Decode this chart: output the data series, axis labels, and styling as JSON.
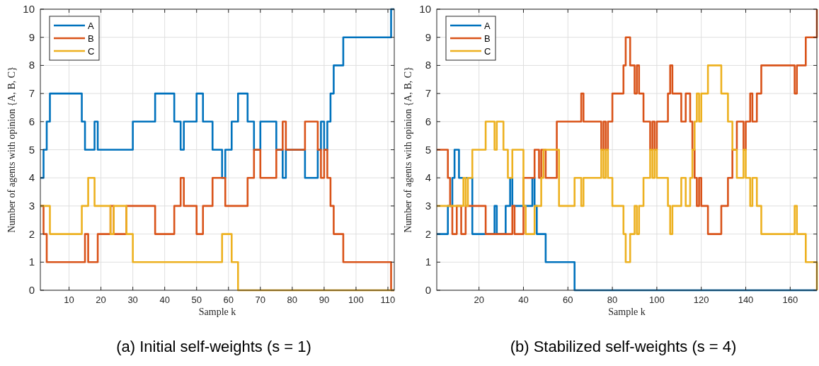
{
  "chart_data": [
    {
      "type": "step",
      "xlabel": "Sample k",
      "ylabel": "Number of agents with opinion {A, B, C}",
      "subtitle": "(a) Initial self-weights (s = 1)",
      "xlim": [
        1,
        112
      ],
      "ylim": [
        0,
        10
      ],
      "xticks": [
        10,
        20,
        30,
        40,
        50,
        60,
        70,
        80,
        90,
        100,
        110
      ],
      "yticks": [
        0,
        1,
        2,
        3,
        4,
        5,
        6,
        7,
        8,
        9,
        10
      ],
      "grid": true,
      "legend": "top left",
      "line_style": "solid",
      "marker": "none",
      "series": [
        {
          "name": "A",
          "color": "#0072bd",
          "x": [
            1,
            2,
            3,
            4,
            14,
            15,
            18,
            19,
            30,
            37,
            43,
            45,
            46,
            50,
            52,
            55,
            58,
            59,
            61,
            63,
            66,
            68,
            70,
            75,
            77,
            78,
            84,
            88,
            89,
            90,
            91,
            92,
            93,
            96,
            111,
            112
          ],
          "values": [
            4,
            5,
            6,
            7,
            6,
            5,
            6,
            5,
            6,
            7,
            6,
            5,
            6,
            7,
            6,
            5,
            4,
            5,
            6,
            7,
            6,
            5,
            6,
            5,
            4,
            5,
            4,
            5,
            6,
            5,
            6,
            7,
            8,
            9,
            10,
            10
          ]
        },
        {
          "name": "B",
          "color": "#d95319",
          "x": [
            1,
            2,
            3,
            15,
            16,
            19,
            23,
            24,
            28,
            37,
            43,
            45,
            46,
            50,
            52,
            55,
            59,
            66,
            68,
            70,
            75,
            77,
            78,
            84,
            88,
            89,
            90,
            91,
            92,
            93,
            96,
            111,
            112
          ],
          "values": [
            3,
            2,
            1,
            2,
            1,
            2,
            3,
            2,
            3,
            2,
            3,
            4,
            3,
            2,
            3,
            4,
            3,
            4,
            5,
            4,
            5,
            6,
            5,
            6,
            5,
            4,
            5,
            4,
            3,
            2,
            1,
            0,
            0
          ]
        },
        {
          "name": "C",
          "color": "#edb120",
          "x": [
            1,
            4,
            14,
            16,
            18,
            23,
            24,
            28,
            30,
            58,
            61,
            63,
            112
          ],
          "values": [
            3,
            2,
            3,
            4,
            3,
            2,
            3,
            2,
            1,
            2,
            1,
            0,
            0
          ]
        }
      ]
    },
    {
      "type": "step",
      "xlabel": "Sample k",
      "ylabel": "Number of agents with opinion {A, B, C}",
      "subtitle": "(b) Stabilized self-weights (s = 4)",
      "xlim": [
        1,
        172
      ],
      "ylim": [
        0,
        10
      ],
      "xticks": [
        20,
        40,
        60,
        80,
        100,
        120,
        140,
        160
      ],
      "yticks": [
        0,
        1,
        2,
        3,
        4,
        5,
        6,
        7,
        8,
        9,
        10
      ],
      "grid": true,
      "legend": "top left",
      "line_style": "solid",
      "marker": "none",
      "series": [
        {
          "name": "A",
          "color": "#0072bd",
          "x": [
            1,
            6,
            8,
            9,
            11,
            17,
            27,
            28,
            32,
            34,
            35,
            44,
            45,
            46,
            50,
            63,
            172
          ],
          "values": [
            2,
            3,
            4,
            5,
            4,
            2,
            3,
            2,
            3,
            4,
            3,
            4,
            3,
            2,
            1,
            0,
            0
          ]
        },
        {
          "name": "B",
          "color": "#d95319",
          "x": [
            1,
            6,
            7,
            8,
            10,
            12,
            14,
            23,
            35,
            36,
            40,
            45,
            47,
            48,
            50,
            55,
            66,
            67,
            75,
            76,
            77,
            78,
            80,
            85,
            86,
            88,
            90,
            91,
            92,
            94,
            97,
            98,
            99,
            100,
            105,
            106,
            107,
            111,
            113,
            115,
            116,
            117,
            118,
            119,
            120,
            123,
            129,
            132,
            134,
            136,
            139,
            140,
            142,
            143,
            145,
            147,
            162,
            163,
            167,
            172
          ],
          "values": [
            5,
            4,
            3,
            2,
            3,
            2,
            3,
            2,
            3,
            2,
            4,
            5,
            4,
            5,
            4,
            6,
            7,
            6,
            5,
            6,
            5,
            6,
            7,
            8,
            9,
            8,
            7,
            8,
            7,
            6,
            5,
            6,
            5,
            6,
            7,
            8,
            7,
            6,
            7,
            6,
            5,
            4,
            3,
            4,
            3,
            2,
            3,
            4,
            5,
            6,
            5,
            6,
            7,
            6,
            7,
            8,
            7,
            8,
            9,
            10
          ]
        },
        {
          "name": "C",
          "color": "#edb120",
          "x": [
            1,
            13,
            14,
            15,
            17,
            23,
            27,
            28,
            31,
            33,
            35,
            40,
            41,
            45,
            48,
            49,
            56,
            63,
            66,
            67,
            75,
            76,
            77,
            78,
            80,
            85,
            86,
            88,
            90,
            91,
            92,
            94,
            97,
            98,
            99,
            100,
            105,
            106,
            107,
            111,
            113,
            115,
            116,
            117,
            118,
            119,
            120,
            123,
            129,
            132,
            134,
            136,
            139,
            140,
            142,
            143,
            145,
            147,
            162,
            163,
            167,
            172
          ],
          "values": [
            3,
            4,
            3,
            4,
            5,
            6,
            5,
            6,
            5,
            4,
            5,
            3,
            2,
            3,
            4,
            5,
            3,
            4,
            3,
            4,
            5,
            4,
            5,
            4,
            3,
            2,
            1,
            2,
            3,
            2,
            3,
            4,
            5,
            4,
            5,
            4,
            3,
            2,
            3,
            4,
            3,
            4,
            5,
            6,
            7,
            6,
            7,
            8,
            7,
            6,
            5,
            4,
            5,
            4,
            3,
            4,
            3,
            2,
            3,
            2,
            1,
            0
          ]
        }
      ]
    }
  ]
}
